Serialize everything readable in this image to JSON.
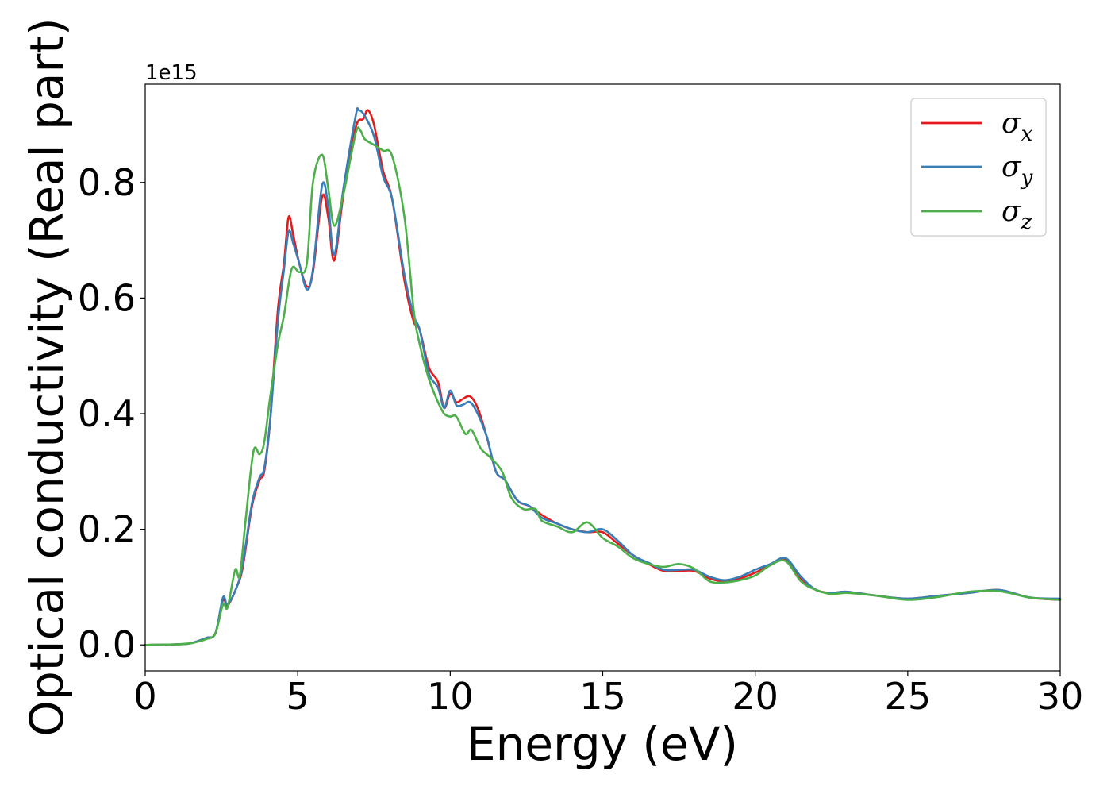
{
  "chart_data": {
    "type": "line",
    "title": "",
    "xlabel": "Energy (eV)",
    "ylabel": "Optical conductivity (Real part)",
    "y_offset_label": "1e15",
    "xlim": [
      0,
      30
    ],
    "ylim": [
      -0.045,
      0.97
    ],
    "x_ticks": [
      0,
      5,
      10,
      15,
      20,
      25,
      30
    ],
    "y_ticks": [
      0.0,
      0.2,
      0.4,
      0.6,
      0.8
    ],
    "grid": false,
    "legend_position": "top-right",
    "series": [
      {
        "name": "σx",
        "symbol": "σ",
        "subscript": "x",
        "color": "#e41a1c",
        "points": [
          [
            0,
            0
          ],
          [
            1,
            0.001
          ],
          [
            1.5,
            0.003
          ],
          [
            2,
            0.012
          ],
          [
            2.3,
            0.02
          ],
          [
            2.55,
            0.078
          ],
          [
            2.7,
            0.068
          ],
          [
            3,
            0.1
          ],
          [
            3.2,
            0.135
          ],
          [
            3.5,
            0.24
          ],
          [
            3.75,
            0.285
          ],
          [
            3.9,
            0.3
          ],
          [
            4.1,
            0.39
          ],
          [
            4.35,
            0.58
          ],
          [
            4.55,
            0.66
          ],
          [
            4.7,
            0.74
          ],
          [
            4.85,
            0.71
          ],
          [
            5.05,
            0.66
          ],
          [
            5.3,
            0.62
          ],
          [
            5.5,
            0.645
          ],
          [
            5.8,
            0.775
          ],
          [
            6,
            0.74
          ],
          [
            6.2,
            0.665
          ],
          [
            6.5,
            0.78
          ],
          [
            6.9,
            0.895
          ],
          [
            7.15,
            0.91
          ],
          [
            7.3,
            0.925
          ],
          [
            7.5,
            0.9
          ],
          [
            7.8,
            0.82
          ],
          [
            8.1,
            0.77
          ],
          [
            8.5,
            0.63
          ],
          [
            8.8,
            0.56
          ],
          [
            9,
            0.545
          ],
          [
            9.3,
            0.48
          ],
          [
            9.6,
            0.455
          ],
          [
            9.8,
            0.41
          ],
          [
            10,
            0.435
          ],
          [
            10.2,
            0.42
          ],
          [
            10.4,
            0.425
          ],
          [
            10.65,
            0.43
          ],
          [
            10.9,
            0.41
          ],
          [
            11.2,
            0.36
          ],
          [
            11.5,
            0.3
          ],
          [
            11.8,
            0.285
          ],
          [
            12.2,
            0.25
          ],
          [
            12.6,
            0.24
          ],
          [
            13,
            0.225
          ],
          [
            13.5,
            0.21
          ],
          [
            14,
            0.2
          ],
          [
            14.5,
            0.195
          ],
          [
            15,
            0.195
          ],
          [
            15.5,
            0.175
          ],
          [
            16,
            0.155
          ],
          [
            16.5,
            0.14
          ],
          [
            17,
            0.128
          ],
          [
            17.5,
            0.128
          ],
          [
            18,
            0.128
          ],
          [
            18.5,
            0.115
          ],
          [
            19,
            0.11
          ],
          [
            19.5,
            0.115
          ],
          [
            20,
            0.125
          ],
          [
            20.5,
            0.138
          ],
          [
            21,
            0.148
          ],
          [
            21.5,
            0.115
          ],
          [
            22,
            0.095
          ],
          [
            22.5,
            0.09
          ],
          [
            23,
            0.092
          ],
          [
            24,
            0.085
          ],
          [
            25,
            0.08
          ],
          [
            26,
            0.085
          ],
          [
            27,
            0.09
          ],
          [
            28,
            0.095
          ],
          [
            29,
            0.082
          ],
          [
            30,
            0.078
          ]
        ]
      },
      {
        "name": "σy",
        "symbol": "σ",
        "subscript": "y",
        "color": "#377eb8",
        "points": [
          [
            0,
            0
          ],
          [
            1,
            0.001
          ],
          [
            1.5,
            0.003
          ],
          [
            2,
            0.012
          ],
          [
            2.3,
            0.02
          ],
          [
            2.55,
            0.082
          ],
          [
            2.7,
            0.07
          ],
          [
            3,
            0.1
          ],
          [
            3.2,
            0.14
          ],
          [
            3.5,
            0.245
          ],
          [
            3.75,
            0.29
          ],
          [
            3.9,
            0.305
          ],
          [
            4.1,
            0.39
          ],
          [
            4.35,
            0.56
          ],
          [
            4.55,
            0.65
          ],
          [
            4.7,
            0.715
          ],
          [
            4.85,
            0.695
          ],
          [
            5.05,
            0.66
          ],
          [
            5.3,
            0.615
          ],
          [
            5.5,
            0.65
          ],
          [
            5.8,
            0.795
          ],
          [
            6,
            0.76
          ],
          [
            6.2,
            0.675
          ],
          [
            6.5,
            0.79
          ],
          [
            6.9,
            0.915
          ],
          [
            7,
            0.925
          ],
          [
            7.2,
            0.915
          ],
          [
            7.5,
            0.88
          ],
          [
            7.8,
            0.81
          ],
          [
            8.1,
            0.77
          ],
          [
            8.5,
            0.64
          ],
          [
            8.8,
            0.57
          ],
          [
            9,
            0.545
          ],
          [
            9.3,
            0.47
          ],
          [
            9.6,
            0.445
          ],
          [
            9.8,
            0.41
          ],
          [
            10,
            0.44
          ],
          [
            10.2,
            0.415
          ],
          [
            10.4,
            0.415
          ],
          [
            10.65,
            0.42
          ],
          [
            10.9,
            0.4
          ],
          [
            11.2,
            0.36
          ],
          [
            11.5,
            0.3
          ],
          [
            11.8,
            0.285
          ],
          [
            12.2,
            0.25
          ],
          [
            12.6,
            0.24
          ],
          [
            13,
            0.22
          ],
          [
            13.5,
            0.21
          ],
          [
            14,
            0.2
          ],
          [
            14.5,
            0.195
          ],
          [
            15,
            0.2
          ],
          [
            15.5,
            0.18
          ],
          [
            16,
            0.155
          ],
          [
            16.5,
            0.142
          ],
          [
            17,
            0.13
          ],
          [
            17.5,
            0.13
          ],
          [
            18,
            0.13
          ],
          [
            18.5,
            0.118
          ],
          [
            19,
            0.112
          ],
          [
            19.5,
            0.118
          ],
          [
            20,
            0.13
          ],
          [
            20.5,
            0.14
          ],
          [
            21,
            0.15
          ],
          [
            21.5,
            0.118
          ],
          [
            22,
            0.095
          ],
          [
            22.5,
            0.09
          ],
          [
            23,
            0.092
          ],
          [
            24,
            0.085
          ],
          [
            25,
            0.08
          ],
          [
            26,
            0.085
          ],
          [
            27,
            0.09
          ],
          [
            28,
            0.095
          ],
          [
            29,
            0.082
          ],
          [
            30,
            0.08
          ]
        ]
      },
      {
        "name": "σz",
        "symbol": "σ",
        "subscript": "z",
        "color": "#4daf4a",
        "points": [
          [
            0,
            0
          ],
          [
            1,
            0.001
          ],
          [
            1.5,
            0.003
          ],
          [
            2,
            0.01
          ],
          [
            2.3,
            0.02
          ],
          [
            2.55,
            0.07
          ],
          [
            2.7,
            0.065
          ],
          [
            2.95,
            0.13
          ],
          [
            3.1,
            0.12
          ],
          [
            3.3,
            0.22
          ],
          [
            3.55,
            0.335
          ],
          [
            3.75,
            0.33
          ],
          [
            3.9,
            0.35
          ],
          [
            4.1,
            0.43
          ],
          [
            4.35,
            0.52
          ],
          [
            4.55,
            0.57
          ],
          [
            4.8,
            0.65
          ],
          [
            5.05,
            0.645
          ],
          [
            5.3,
            0.66
          ],
          [
            5.5,
            0.8
          ],
          [
            5.8,
            0.848
          ],
          [
            6,
            0.79
          ],
          [
            6.2,
            0.725
          ],
          [
            6.5,
            0.78
          ],
          [
            6.9,
            0.885
          ],
          [
            7.05,
            0.89
          ],
          [
            7.2,
            0.875
          ],
          [
            7.5,
            0.865
          ],
          [
            7.8,
            0.855
          ],
          [
            8.1,
            0.845
          ],
          [
            8.5,
            0.74
          ],
          [
            8.8,
            0.58
          ],
          [
            9,
            0.52
          ],
          [
            9.3,
            0.46
          ],
          [
            9.6,
            0.42
          ],
          [
            9.8,
            0.4
          ],
          [
            10,
            0.395
          ],
          [
            10.2,
            0.395
          ],
          [
            10.5,
            0.365
          ],
          [
            10.7,
            0.372
          ],
          [
            11,
            0.34
          ],
          [
            11.3,
            0.325
          ],
          [
            11.7,
            0.3
          ],
          [
            12,
            0.255
          ],
          [
            12.4,
            0.235
          ],
          [
            12.8,
            0.235
          ],
          [
            13,
            0.215
          ],
          [
            13.5,
            0.205
          ],
          [
            14,
            0.195
          ],
          [
            14.5,
            0.212
          ],
          [
            15,
            0.185
          ],
          [
            15.5,
            0.17
          ],
          [
            16,
            0.15
          ],
          [
            16.5,
            0.14
          ],
          [
            17,
            0.135
          ],
          [
            17.5,
            0.14
          ],
          [
            18,
            0.132
          ],
          [
            18.5,
            0.11
          ],
          [
            19,
            0.108
          ],
          [
            19.5,
            0.112
          ],
          [
            20,
            0.12
          ],
          [
            20.5,
            0.138
          ],
          [
            21,
            0.145
          ],
          [
            21.5,
            0.11
          ],
          [
            22,
            0.095
          ],
          [
            22.5,
            0.088
          ],
          [
            23,
            0.09
          ],
          [
            24,
            0.085
          ],
          [
            25,
            0.078
          ],
          [
            26,
            0.083
          ],
          [
            27,
            0.092
          ],
          [
            28,
            0.093
          ],
          [
            29,
            0.082
          ],
          [
            30,
            0.078
          ]
        ]
      }
    ]
  }
}
